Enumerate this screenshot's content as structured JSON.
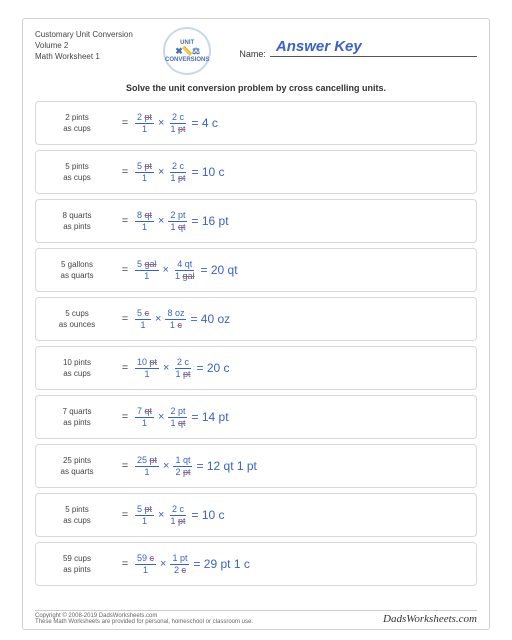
{
  "header": {
    "title1": "Customary Unit Conversion",
    "title2": "Volume 2",
    "title3": "Math Worksheet 1",
    "logo_top": "UNIT",
    "logo_bottom": "CONVERSIONS",
    "name_label": "Name:",
    "answer_key": "Answer Key"
  },
  "instruction": "Solve the unit conversion problem by cross cancelling units.",
  "problems": [
    {
      "qty": "2 pints",
      "as": "as cups",
      "f1n": "2 pt",
      "f1d": "1",
      "f2n": "2 c",
      "f2d": "1 pt",
      "ans": "= 4 c"
    },
    {
      "qty": "5 pints",
      "as": "as cups",
      "f1n": "5 pt",
      "f1d": "1",
      "f2n": "2 c",
      "f2d": "1 pt",
      "ans": "= 10 c"
    },
    {
      "qty": "8 quarts",
      "as": "as pints",
      "f1n": "8 qt",
      "f1d": "1",
      "f2n": "2 pt",
      "f2d": "1 qt",
      "ans": "= 16 pt"
    },
    {
      "qty": "5 gallons",
      "as": "as quarts",
      "f1n": "5 gal",
      "f1d": "1",
      "f2n": "4 qt",
      "f2d": "1 gal",
      "ans": "= 20 qt"
    },
    {
      "qty": "5 cups",
      "as": "as ounces",
      "f1n": "5 c",
      "f1d": "1",
      "f2n": "8 oz",
      "f2d": "1 c",
      "ans": "= 40 oz"
    },
    {
      "qty": "10 pints",
      "as": "as cups",
      "f1n": "10 pt",
      "f1d": "1",
      "f2n": "2 c",
      "f2d": "1 pt",
      "ans": "= 20 c"
    },
    {
      "qty": "7 quarts",
      "as": "as pints",
      "f1n": "7 qt",
      "f1d": "1",
      "f2n": "2 pt",
      "f2d": "1 qt",
      "ans": "= 14 pt"
    },
    {
      "qty": "25 pints",
      "as": "as quarts",
      "f1n": "25 pt",
      "f1d": "1",
      "f2n": "1 qt",
      "f2d": "2 pt",
      "ans": "= 12 qt  1 pt"
    },
    {
      "qty": "5 pints",
      "as": "as cups",
      "f1n": "5 pt",
      "f1d": "1",
      "f2n": "2 c",
      "f2d": "1 pt",
      "ans": "= 10 c"
    },
    {
      "qty": "59 cups",
      "as": "as pints",
      "f1n": "59 c",
      "f1d": "1",
      "f2n": "1 pt",
      "f2d": "2 c",
      "ans": "= 29 pt  1 c"
    }
  ],
  "footer": {
    "copyright": "Copyright © 2008-2019 DadsWorksheets.com",
    "note": "These Math Worksheets are provided for personal, homeschool or classroom use.",
    "brand": "DadsWorksheets.com"
  },
  "colors": {
    "answer": "#3a62c4",
    "border": "#d8d8d8",
    "strike": "#d05050"
  }
}
